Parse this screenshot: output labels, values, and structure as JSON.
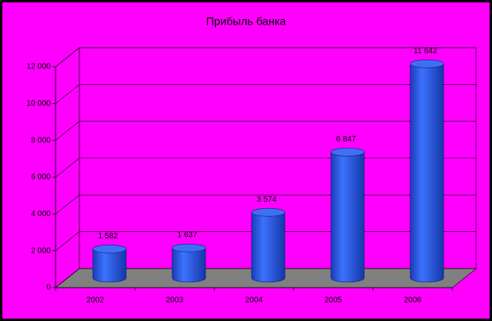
{
  "chart_data": {
    "type": "bar",
    "title": "Прибыль банка",
    "categories": [
      "2002",
      "2003",
      "2004",
      "2005",
      "2006"
    ],
    "values": [
      1582,
      1637,
      3574,
      6847,
      11642
    ],
    "value_labels": [
      "1 582",
      "1 637",
      "3 574",
      "6 847",
      "11 642"
    ],
    "color": "#2b5be8",
    "ylim": [
      0,
      12000
    ],
    "yticks": [
      0,
      {
        "value": 2000,
        "label": "2 000"
      },
      {
        "value": 4000,
        "label": "4 000"
      },
      {
        "value": 6000,
        "label": "6 000"
      },
      {
        "value": 8000,
        "label": "8 000"
      },
      {
        "value": 10000,
        "label": "10 000"
      },
      {
        "value": 12000,
        "label": "12 000"
      }
    ],
    "grid": true
  }
}
